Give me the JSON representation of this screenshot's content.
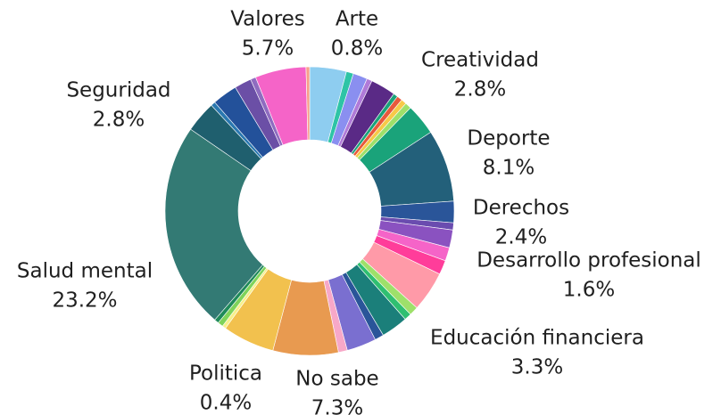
{
  "chart_data": {
    "type": "donut",
    "categories": [
      null,
      "Arte",
      null,
      null,
      "Creatividad",
      null,
      null,
      null,
      null,
      null,
      "Deporte",
      "Derechos",
      null,
      null,
      null,
      "Desarrollo profesional",
      null,
      null,
      null,
      null,
      null,
      "Educación financiera",
      null,
      "No sabe",
      null,
      "Politica",
      null,
      null,
      "Salud mental",
      null,
      null,
      "Seguridad",
      null,
      null,
      "Valores",
      null
    ],
    "values": [
      4.1,
      0.8,
      1.6,
      0.6,
      2.8,
      0.5,
      0.6,
      0.6,
      0.7,
      3.5,
      8.1,
      2.4,
      0.8,
      2.0,
      1.5,
      1.6,
      4.5,
      1.0,
      0.8,
      3.0,
      1.0,
      3.3,
      1.0,
      7.3,
      5.8,
      0.4,
      0.6,
      0.5,
      23.2,
      3.5,
      0.5,
      2.8,
      1.9,
      0.6,
      5.7,
      0.4
    ],
    "value_labels": [
      null,
      "0.8%",
      null,
      null,
      "2.8%",
      null,
      null,
      null,
      null,
      null,
      "8.1%",
      "2.4%",
      null,
      null,
      null,
      "1.6%",
      null,
      null,
      null,
      null,
      null,
      "3.3%",
      null,
      "7.3%",
      null,
      "0.4%",
      null,
      null,
      "23.2%",
      null,
      null,
      "2.8%",
      null,
      null,
      "5.7%",
      null
    ],
    "colors": [
      "#8ecdf0",
      "#2ec4a6",
      "#8a8ff0",
      "#b07ad8",
      "#5a2a86",
      "#1aa37a",
      "#e8593c",
      "#f7c948",
      "#9ee06a",
      "#1aa37a",
      "#23607a",
      "#2a5599",
      "#6a4caf",
      "#8a52c0",
      "#f564c8",
      "#ff3d9a",
      "#ff9aa8",
      "#9ee06a",
      "#2fbf71",
      "#1b7f7a",
      "#2a5599",
      "#7a6fd0",
      "#f7a8c8",
      "#e89a50",
      "#f2c14e",
      "#f7f08a",
      "#7fd35a",
      "#1f8a5a",
      "#337a74",
      "#1f5f6e",
      "#2a78b0",
      "#23519a",
      "#6b4fa6",
      "#8f6cc0",
      "#f564c8",
      "#f7a08a"
    ]
  }
}
